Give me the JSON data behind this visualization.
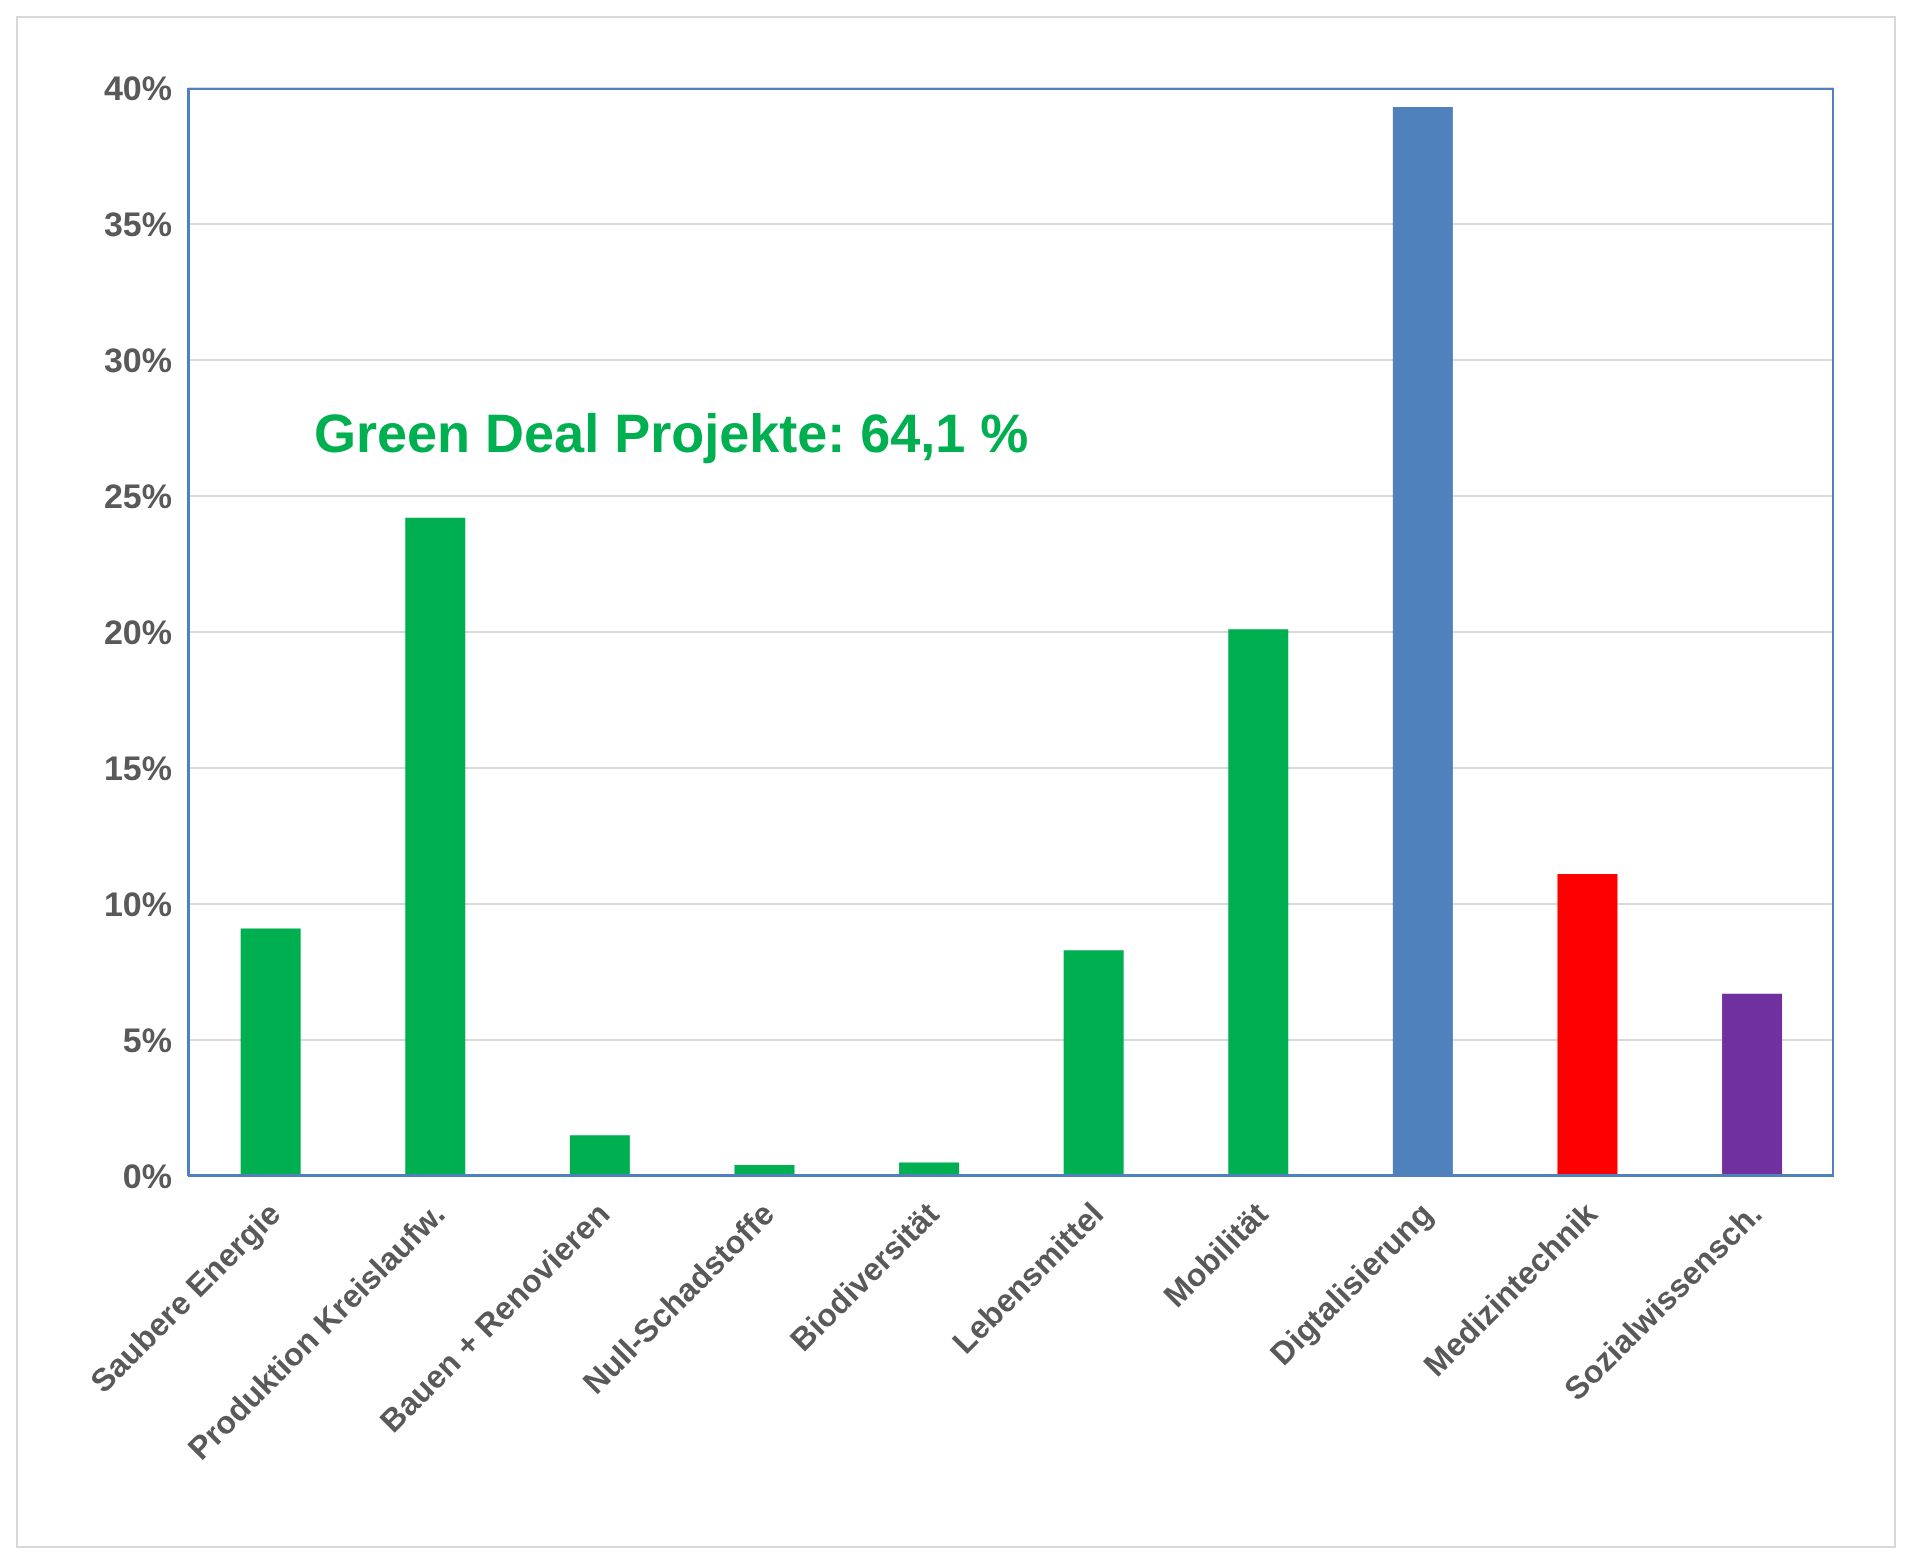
{
  "chart_data": {
    "type": "bar",
    "categories": [
      "Saubere Energie",
      "Produktion Kreislaufw.",
      "Bauen + Renovieren",
      "Null-Schadstoffe",
      "Biodiversität",
      "Lebensmittel",
      "Mobilität",
      "Digtalisierung",
      "Medizintechnik",
      "Sozialwissensch."
    ],
    "values": [
      9.1,
      24.2,
      1.5,
      0.4,
      0.5,
      8.3,
      20.1,
      39.3,
      11.1,
      6.7
    ],
    "colors": [
      "#00b050",
      "#00b050",
      "#00b050",
      "#00b050",
      "#00b050",
      "#00b050",
      "#00b050",
      "#4f81bd",
      "#ff0000",
      "#7030a0"
    ],
    "ylim": [
      0,
      40
    ],
    "yticks": [
      {
        "value": 0,
        "label": "0%"
      },
      {
        "value": 5,
        "label": "5%"
      },
      {
        "value": 10,
        "label": "10%"
      },
      {
        "value": 15,
        "label": "15%"
      },
      {
        "value": 20,
        "label": "20%"
      },
      {
        "value": 25,
        "label": "25%"
      },
      {
        "value": 30,
        "label": "30%"
      },
      {
        "value": 35,
        "label": "35%"
      },
      {
        "value": 40,
        "label": "40%"
      }
    ],
    "grid": "y",
    "legend": false,
    "annotations": [
      "Green Deal Projekte: 64,1 %"
    ]
  }
}
